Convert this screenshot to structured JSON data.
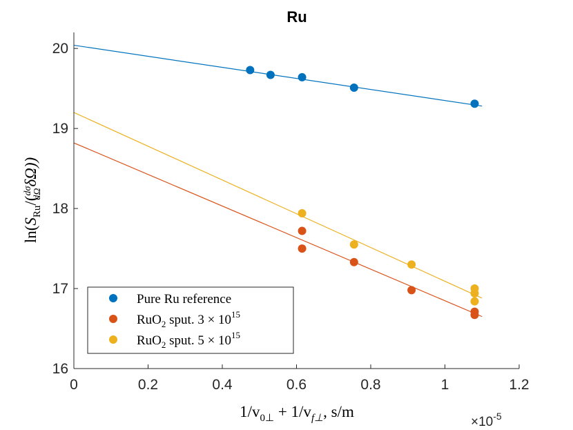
{
  "chart_data": {
    "type": "scatter",
    "title": "Ru",
    "xlabel": "1/v₀⊥ + 1/vᶠ⊥, s/m",
    "xlabel_parts": {
      "a": "1/v",
      "a_sub": "0⊥",
      "plus": " + 1/v",
      "b_sub": "f⊥",
      "unit": ", s/m"
    },
    "ylabel": "ln(S_Ru/(dσ/dΩ δΩ))",
    "ylabel_parts": {
      "ln": "ln(",
      "S": "S",
      "S_sub": "Ru",
      "mid": "/(",
      "num": "dσ",
      "den": "dΩ",
      "tail": "δΩ))"
    },
    "x_exponent": "×10",
    "x_exponent_power": "-5",
    "xlim": [
      0,
      1.2
    ],
    "ylim": [
      16,
      20.2
    ],
    "xticks": [
      0,
      0.2,
      0.4,
      0.6,
      0.8,
      1,
      1.2
    ],
    "xtick_labels": [
      "0",
      "0.2",
      "0.4",
      "0.6",
      "0.8",
      "1",
      "1.2"
    ],
    "yticks": [
      16,
      17,
      18,
      19,
      20
    ],
    "ytick_labels": [
      "16",
      "17",
      "18",
      "19",
      "20"
    ],
    "grid": false,
    "legend_position": "bottom-left",
    "series": [
      {
        "name": "Pure Ru reference",
        "color": "#0072BD",
        "x": [
          0.475,
          0.53,
          0.615,
          0.755,
          1.08
        ],
        "y": [
          19.73,
          19.67,
          19.64,
          19.51,
          19.31
        ],
        "fit": {
          "x0": 0,
          "y0": 20.04,
          "x1": 1.1,
          "y1": 19.28
        }
      },
      {
        "name": "RuO₂ sput. 3 × 10¹⁵",
        "legend_parts": {
          "a": "RuO",
          "sub": "2",
          "b": " sput. 3 × 10",
          "sup": "15"
        },
        "color": "#D95319",
        "x": [
          0.615,
          0.615,
          0.755,
          0.91,
          1.08,
          1.08
        ],
        "y": [
          17.72,
          17.5,
          17.33,
          16.98,
          16.71,
          16.67
        ],
        "fit": {
          "x0": 0,
          "y0": 18.82,
          "x1": 1.1,
          "y1": 16.65
        }
      },
      {
        "name": "RuO₂ sput. 5 × 10¹⁵",
        "legend_parts": {
          "a": "RuO",
          "sub": "2",
          "b": " sput. 5 × 10",
          "sup": "15"
        },
        "color": "#EDB120",
        "x": [
          0.615,
          0.755,
          0.91,
          1.08,
          1.08,
          1.08
        ],
        "y": [
          17.94,
          17.55,
          17.3,
          17.0,
          16.94,
          16.84
        ],
        "fit": {
          "x0": 0,
          "y0": 19.2,
          "x1": 1.1,
          "y1": 16.88
        }
      }
    ]
  }
}
